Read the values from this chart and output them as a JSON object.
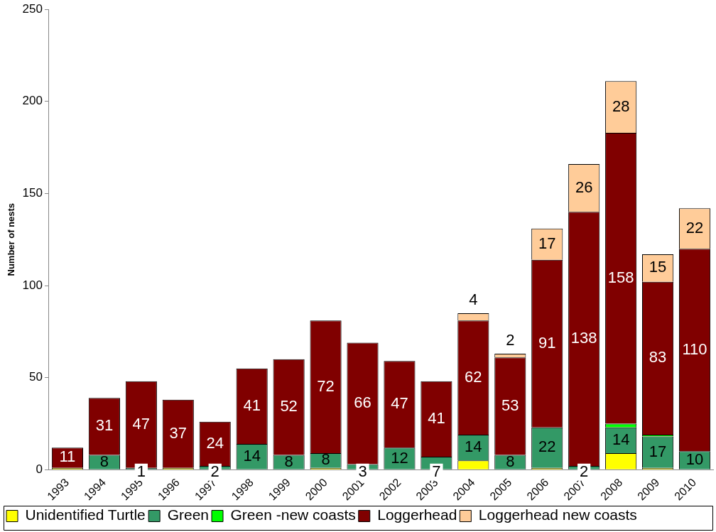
{
  "chart_data": {
    "type": "bar",
    "stacked": true,
    "ylabel": "Number of nests",
    "categories": [
      "1993",
      "1994",
      "1995",
      "1996",
      "1997",
      "1998",
      "1999",
      "2000",
      "2001",
      "2002",
      "2003",
      "2004",
      "2005",
      "2006",
      "2007",
      "2008",
      "2009",
      "2010"
    ],
    "series": [
      {
        "name": "Unidentified Turtle",
        "color": "#ffff00",
        "values": [
          1,
          0,
          0,
          1,
          0,
          0,
          0,
          1,
          0,
          0,
          0,
          5,
          0,
          1,
          0,
          9,
          1,
          0
        ],
        "value_labels": [
          null,
          null,
          null,
          null,
          null,
          null,
          null,
          null,
          null,
          null,
          null,
          null,
          null,
          null,
          null,
          null,
          null,
          null
        ]
      },
      {
        "name": "Green",
        "color": "#339966",
        "values": [
          0,
          8,
          1,
          0,
          2,
          14,
          8,
          8,
          3,
          12,
          7,
          14,
          8,
          22,
          2,
          14,
          17,
          10
        ],
        "value_labels": [
          null,
          "8",
          "1",
          null,
          "2",
          "14",
          "8",
          "8",
          "3",
          "12",
          "7",
          "14",
          "8",
          "22",
          "2",
          "14",
          "17",
          "10"
        ]
      },
      {
        "name": "Green -new coasts",
        "color": "#00ff00",
        "values": [
          0,
          0,
          0,
          0,
          0,
          0,
          0,
          0,
          0,
          0,
          0,
          0,
          0,
          0,
          0,
          2,
          1,
          0
        ],
        "value_labels": [
          null,
          null,
          null,
          null,
          null,
          null,
          null,
          null,
          null,
          null,
          null,
          null,
          null,
          null,
          null,
          null,
          null,
          null
        ]
      },
      {
        "name": "Loggerhead",
        "color": "#800000",
        "values": [
          11,
          31,
          47,
          37,
          24,
          41,
          52,
          72,
          66,
          47,
          41,
          62,
          53,
          91,
          138,
          158,
          83,
          110
        ],
        "value_labels": [
          "11",
          "31",
          "47",
          "37",
          "24",
          "41",
          "52",
          "72",
          "66",
          "47",
          "41",
          "62",
          "53",
          "91",
          "138",
          "158",
          "83",
          "110"
        ]
      },
      {
        "name": "Loggerhead new coasts",
        "color": "#ffcc99",
        "values": [
          0,
          0,
          0,
          0,
          0,
          0,
          0,
          0,
          0,
          0,
          0,
          4,
          2,
          17,
          26,
          28,
          15,
          22
        ],
        "value_labels": [
          null,
          null,
          null,
          null,
          null,
          null,
          null,
          null,
          null,
          null,
          null,
          "4",
          "2",
          "17",
          "26",
          "28",
          "15",
          "22"
        ]
      }
    ],
    "ylim": [
      0,
      250
    ],
    "yticks": [
      0,
      50,
      100,
      150,
      200,
      250
    ],
    "grid": false,
    "legend": "bottom"
  }
}
